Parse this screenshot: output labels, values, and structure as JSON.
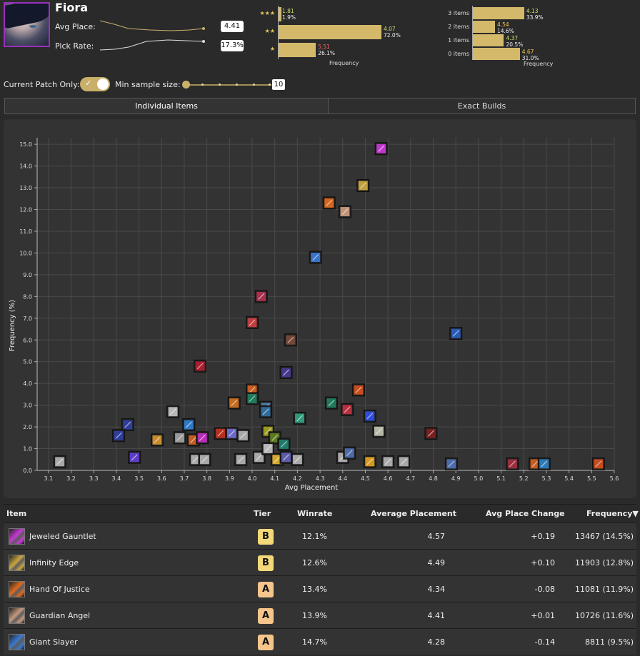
{
  "champion": {
    "name": "Fiora",
    "avg_place_label": "Avg Place:",
    "avg_place_value": "4.41",
    "pick_rate_label": "Pick Rate:",
    "pick_rate_value": "17.3%"
  },
  "star_chart": {
    "axis_label": "Frequency",
    "rows": [
      {
        "stars": "★★★",
        "avg": "1.81",
        "freq": "1.9%",
        "fraction": 0.019,
        "avg_color": "#c8e06a"
      },
      {
        "stars": "★★",
        "avg": "4.07",
        "freq": "72.0%",
        "fraction": 0.72,
        "avg_color": "#c8e06a"
      },
      {
        "stars": "★",
        "avg": "5.51",
        "freq": "26.1%",
        "fraction": 0.261,
        "avg_color": "#ff6b6b"
      }
    ]
  },
  "items_chart": {
    "axis_label": "Frequency",
    "rows": [
      {
        "label": "3 items",
        "avg": "4.13",
        "freq": "33.9%",
        "fraction": 0.339,
        "avg_color": "#c8e06a"
      },
      {
        "label": "2 items",
        "avg": "4.54",
        "freq": "14.6%",
        "fraction": 0.146,
        "avg_color": "#f2c94c"
      },
      {
        "label": "1 items",
        "avg": "4.37",
        "freq": "20.5%",
        "fraction": 0.205,
        "avg_color": "#c8e06a"
      },
      {
        "label": "0 items",
        "avg": "4.67",
        "freq": "31.0%",
        "fraction": 0.31,
        "avg_color": "#f2c94c"
      }
    ]
  },
  "controls": {
    "patch_label": "Current Patch Only:",
    "patch_on": true,
    "check_glyph": "✓",
    "min_sample_label": "Min sample size:",
    "min_sample_value": "10"
  },
  "tabs": [
    {
      "label": "Individual Items",
      "active": true
    },
    {
      "label": "Exact Builds",
      "active": false
    }
  ],
  "chart_data": {
    "type": "scatter",
    "xlabel": "Avg Placement",
    "ylabel": "Frequency (%)",
    "xlim": [
      3.05,
      5.6
    ],
    "ylim": [
      0,
      15.3
    ],
    "xticks": [
      "3.1",
      "3.2",
      "3.3",
      "3.4",
      "3.5",
      "3.6",
      "3.7",
      "3.8",
      "3.9",
      "4.0",
      "4.1",
      "4.2",
      "4.3",
      "4.4",
      "4.5",
      "4.6",
      "4.7",
      "4.8",
      "4.9",
      "5.0",
      "5.1",
      "5.2",
      "5.3",
      "5.4",
      "5.5",
      "5.6"
    ],
    "yticks": [
      "0.0",
      "1.0",
      "2.0",
      "3.0",
      "4.0",
      "5.0",
      "6.0",
      "7.0",
      "8.0",
      "9.0",
      "10.0",
      "11.0",
      "12.0",
      "13.0",
      "14.0",
      "15.0"
    ],
    "grid": true,
    "points": [
      {
        "x": 4.57,
        "y": 14.8,
        "color": "#c83ad6"
      },
      {
        "x": 4.49,
        "y": 13.1,
        "color": "#c9a640"
      },
      {
        "x": 4.34,
        "y": 12.3,
        "color": "#e06a20"
      },
      {
        "x": 4.41,
        "y": 11.9,
        "color": "#c79a80"
      },
      {
        "x": 4.28,
        "y": 9.8,
        "color": "#3a78d0"
      },
      {
        "x": 4.04,
        "y": 8.0,
        "color": "#b03050"
      },
      {
        "x": 4.0,
        "y": 6.8,
        "color": "#c84040"
      },
      {
        "x": 4.17,
        "y": 6.0,
        "color": "#7a4a3a"
      },
      {
        "x": 4.9,
        "y": 6.3,
        "color": "#2a60c0"
      },
      {
        "x": 3.77,
        "y": 4.8,
        "color": "#b02030"
      },
      {
        "x": 4.15,
        "y": 4.5,
        "color": "#4a3a90"
      },
      {
        "x": 4.0,
        "y": 3.7,
        "color": "#d06020"
      },
      {
        "x": 4.47,
        "y": 3.7,
        "color": "#d05020"
      },
      {
        "x": 3.92,
        "y": 3.1,
        "color": "#d07020"
      },
      {
        "x": 4.0,
        "y": 3.3,
        "color": "#208060"
      },
      {
        "x": 4.06,
        "y": 2.9,
        "color": "#5080b0"
      },
      {
        "x": 4.35,
        "y": 3.1,
        "color": "#208060"
      },
      {
        "x": 4.42,
        "y": 2.8,
        "color": "#c03040"
      },
      {
        "x": 4.06,
        "y": 2.7,
        "color": "#3070a0"
      },
      {
        "x": 3.65,
        "y": 2.7,
        "color": "#c0c0c0"
      },
      {
        "x": 4.21,
        "y": 2.4,
        "color": "#30a080"
      },
      {
        "x": 4.52,
        "y": 2.5,
        "color": "#3050e0"
      },
      {
        "x": 3.45,
        "y": 2.1,
        "color": "#3040a0"
      },
      {
        "x": 3.72,
        "y": 2.1,
        "color": "#3080d0"
      },
      {
        "x": 4.56,
        "y": 1.8,
        "color": "#c0c0b0"
      },
      {
        "x": 4.79,
        "y": 1.7,
        "color": "#802020"
      },
      {
        "x": 3.41,
        "y": 1.6,
        "color": "#3040a0"
      },
      {
        "x": 3.58,
        "y": 1.4,
        "color": "#d09030"
      },
      {
        "x": 3.68,
        "y": 1.5,
        "color": "#a0a0a0"
      },
      {
        "x": 3.74,
        "y": 1.4,
        "color": "#d06020"
      },
      {
        "x": 3.78,
        "y": 1.5,
        "color": "#c030c0"
      },
      {
        "x": 3.86,
        "y": 1.7,
        "color": "#c03020"
      },
      {
        "x": 3.91,
        "y": 1.7,
        "color": "#7070d0"
      },
      {
        "x": 3.96,
        "y": 1.6,
        "color": "#b0b0b0"
      },
      {
        "x": 4.07,
        "y": 1.8,
        "color": "#a0a020"
      },
      {
        "x": 4.1,
        "y": 1.5,
        "color": "#608020"
      },
      {
        "x": 4.14,
        "y": 1.2,
        "color": "#208070"
      },
      {
        "x": 3.48,
        "y": 0.6,
        "color": "#6040d0"
      },
      {
        "x": 3.75,
        "y": 0.5,
        "color": "#b0b0b0"
      },
      {
        "x": 3.79,
        "y": 0.5,
        "color": "#b0b0b0"
      },
      {
        "x": 3.95,
        "y": 0.5,
        "color": "#b0b0b0"
      },
      {
        "x": 4.03,
        "y": 0.6,
        "color": "#b0b0b0"
      },
      {
        "x": 4.07,
        "y": 1.0,
        "color": "#c0c0c0"
      },
      {
        "x": 4.11,
        "y": 0.5,
        "color": "#e0b030"
      },
      {
        "x": 4.15,
        "y": 0.6,
        "color": "#6060b0"
      },
      {
        "x": 4.2,
        "y": 0.5,
        "color": "#b0b0b0"
      },
      {
        "x": 4.4,
        "y": 0.6,
        "color": "#b0b0b0"
      },
      {
        "x": 4.43,
        "y": 0.8,
        "color": "#5070b0"
      },
      {
        "x": 4.52,
        "y": 0.4,
        "color": "#e0a020"
      },
      {
        "x": 4.6,
        "y": 0.4,
        "color": "#b0b0b0"
      },
      {
        "x": 4.67,
        "y": 0.4,
        "color": "#b0b0b0"
      },
      {
        "x": 4.88,
        "y": 0.3,
        "color": "#5070b0"
      },
      {
        "x": 5.15,
        "y": 0.3,
        "color": "#a03040"
      },
      {
        "x": 5.25,
        "y": 0.3,
        "color": "#d06020"
      },
      {
        "x": 5.29,
        "y": 0.3,
        "color": "#3080c0"
      },
      {
        "x": 5.53,
        "y": 0.3,
        "color": "#d05020"
      },
      {
        "x": 3.15,
        "y": 0.4,
        "color": "#b0b0b0"
      }
    ]
  },
  "table": {
    "headers": {
      "item": "Item",
      "tier": "Tier",
      "winrate": "Winrate",
      "avg_placement": "Average Placement",
      "avg_place_change": "Avg Place Change",
      "frequency": "Frequency▼"
    },
    "rows": [
      {
        "name": "Jeweled Gauntlet",
        "icon": "jeweled-gauntlet-icon",
        "icon_color": "#c83ad6",
        "tier": "B",
        "winrate": "12.1%",
        "avg": "4.57",
        "change": "+0.19",
        "frequency": "13467 (14.5%)"
      },
      {
        "name": "Infinity Edge",
        "icon": "infinity-edge-icon",
        "icon_color": "#c9a640",
        "tier": "B",
        "winrate": "12.6%",
        "avg": "4.49",
        "change": "+0.10",
        "frequency": "11903 (12.8%)"
      },
      {
        "name": "Hand Of Justice",
        "icon": "hand-of-justice-icon",
        "icon_color": "#e06a20",
        "tier": "A",
        "winrate": "13.4%",
        "avg": "4.34",
        "change": "-0.08",
        "frequency": "11081 (11.9%)"
      },
      {
        "name": "Guardian Angel",
        "icon": "guardian-angel-icon",
        "icon_color": "#c79a80",
        "tier": "A",
        "winrate": "13.9%",
        "avg": "4.41",
        "change": "+0.01",
        "frequency": "10726 (11.6%)"
      },
      {
        "name": "Giant Slayer",
        "icon": "giant-slayer-icon",
        "icon_color": "#3a78d0",
        "tier": "A",
        "winrate": "14.7%",
        "avg": "4.28",
        "change": "-0.14",
        "frequency": "8811 (9.5%)"
      }
    ]
  }
}
